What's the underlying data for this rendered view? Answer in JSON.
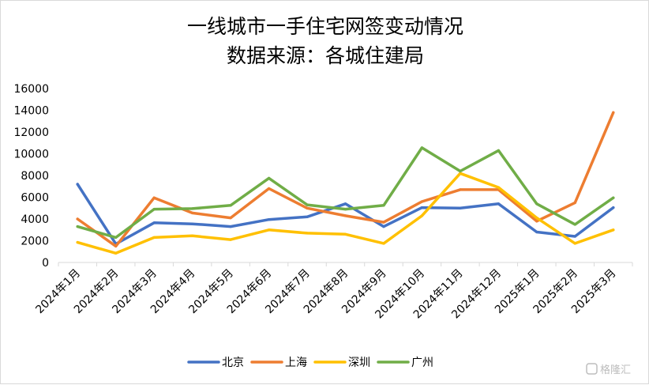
{
  "chart_data": {
    "type": "line",
    "title": "一线城市一手住宅网签变动情况",
    "subtitle": "数据来源：各城住建局",
    "xlabel": "",
    "ylabel": "",
    "ylim": [
      0,
      16000
    ],
    "yticks": [
      0,
      2000,
      4000,
      6000,
      8000,
      10000,
      12000,
      14000,
      16000
    ],
    "grid": false,
    "legend_position": "bottom",
    "categories": [
      "2024年1月",
      "2024年2月",
      "2024年3月",
      "2024年4月",
      "2024年5月",
      "2024年6月",
      "2024年7月",
      "2024年8月",
      "2024年9月",
      "2024年10月",
      "2024年11月",
      "2024年12月",
      "2025年1月",
      "2025年2月",
      "2025年3月"
    ],
    "series": [
      {
        "name": "北京",
        "color": "#4472c4",
        "values": [
          7200,
          1700,
          3650,
          3550,
          3300,
          3950,
          4200,
          5400,
          3300,
          5050,
          5000,
          5400,
          2800,
          2400,
          5050
        ]
      },
      {
        "name": "上海",
        "color": "#ed7d31",
        "values": [
          4000,
          1500,
          5950,
          4550,
          4100,
          6800,
          5000,
          4300,
          3700,
          5600,
          6700,
          6700,
          3800,
          5500,
          13800
        ]
      },
      {
        "name": "深圳",
        "color": "#ffc000",
        "values": [
          1850,
          850,
          2300,
          2450,
          2100,
          3000,
          2700,
          2600,
          1750,
          4300,
          8200,
          6900,
          4100,
          1750,
          3000
        ]
      },
      {
        "name": "广州",
        "color": "#70ad47",
        "values": [
          3300,
          2300,
          4900,
          4950,
          5250,
          7750,
          5300,
          4900,
          5250,
          10550,
          8400,
          10300,
          5400,
          3500,
          5950
        ]
      }
    ]
  },
  "watermark": "格隆汇"
}
